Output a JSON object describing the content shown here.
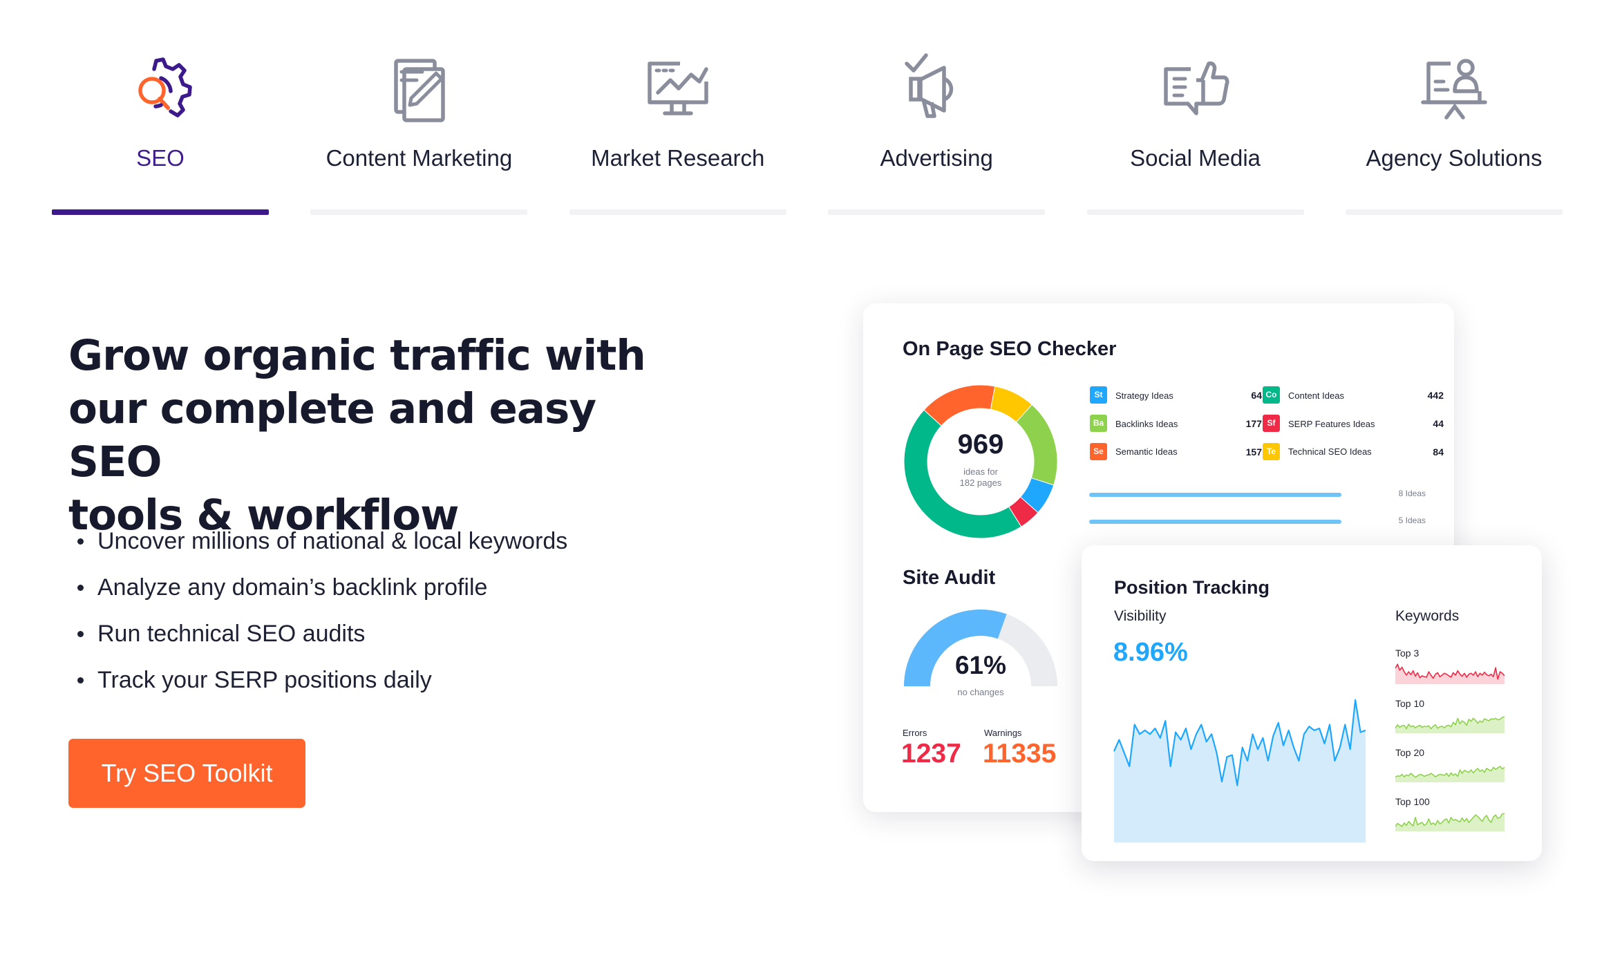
{
  "tabs": [
    {
      "label": "SEO",
      "icon": "seo-gear-magnifier-icon",
      "active": true
    },
    {
      "label": "Content Marketing",
      "icon": "document-pencil-icon",
      "active": false
    },
    {
      "label": "Market Research",
      "icon": "monitor-chart-icon",
      "active": false
    },
    {
      "label": "Advertising",
      "icon": "megaphone-icon",
      "active": false
    },
    {
      "label": "Social Media",
      "icon": "thumbs-up-chat-icon",
      "active": false
    },
    {
      "label": "Agency Solutions",
      "icon": "presenter-board-icon",
      "active": false
    }
  ],
  "hero": {
    "title_lines": [
      "Grow organic traffic with",
      "our complete and easy SEO",
      "tools & workflow"
    ],
    "bullets": [
      "Uncover millions of national & local keywords",
      "Analyze any domain’s backlink profile",
      "Run technical SEO audits",
      "Track your SERP positions daily"
    ],
    "cta_label": "Try SEO Toolkit"
  },
  "colors": {
    "accent_purple": "#3c1a8c",
    "cta_orange": "#ff642d",
    "icon_gray": "#8a8e9c",
    "error_red": "#ee2a46",
    "warning_orange": "#ff642d",
    "visibility_blue": "#1ea7fd"
  },
  "onpage": {
    "title": "On Page SEO Checker",
    "donut_value": "969",
    "donut_caption_1": "ideas for",
    "donut_caption_2": "182 pages",
    "ideas": [
      {
        "abbr": "St",
        "label": "Strategy Ideas",
        "value": "64",
        "color": "#1ea7fd"
      },
      {
        "abbr": "Ba",
        "label": "Backlinks Ideas",
        "value": "177",
        "color": "#8ed14c"
      },
      {
        "abbr": "Se",
        "label": "Semantic Ideas",
        "value": "157",
        "color": "#ff642d"
      },
      {
        "abbr": "Co",
        "label": "Content Ideas",
        "value": "442",
        "color": "#00b88a"
      },
      {
        "abbr": "Sf",
        "label": "SERP Features Ideas",
        "value": "44",
        "color": "#ee2a46"
      },
      {
        "abbr": "Te",
        "label": "Technical SEO Ideas",
        "value": "84",
        "color": "#ffc700"
      }
    ],
    "progress_rows": [
      {
        "label": "8 Ideas",
        "fill": 1.0
      },
      {
        "label": "5 Ideas",
        "fill": 1.0
      }
    ]
  },
  "chart_data": [
    {
      "type": "pie",
      "title": "On Page SEO Checker",
      "note": "donut",
      "categories": [
        "Content Ideas",
        "Semantic Ideas",
        "Technical SEO Ideas",
        "Backlinks Ideas",
        "Strategy Ideas",
        "SERP Features Ideas"
      ],
      "values": [
        442,
        157,
        84,
        177,
        64,
        44
      ],
      "colors": [
        "#00b88a",
        "#ff642d",
        "#ffc700",
        "#8ed14c",
        "#1ea7fd",
        "#ee2a46"
      ]
    },
    {
      "type": "pie",
      "title": "Site Audit",
      "note": "semi-circular gauge",
      "categories": [
        "score",
        "remaining"
      ],
      "values": [
        61,
        39
      ],
      "colors": [
        "#5cb7fb",
        "#ebecef"
      ]
    },
    {
      "type": "area",
      "title": "Visibility",
      "x": [
        1,
        2,
        3,
        4,
        5,
        6,
        7,
        8,
        9,
        10,
        11,
        12,
        13,
        14,
        15,
        16,
        17,
        18,
        19,
        20,
        21,
        22,
        23,
        24,
        25,
        26,
        27,
        28,
        29,
        30,
        31,
        32,
        33,
        34,
        35,
        36,
        37,
        38,
        39,
        40,
        41,
        42,
        43,
        44,
        45,
        46,
        47,
        48,
        49,
        50
      ],
      "values": [
        48,
        54,
        47,
        40,
        62,
        57,
        59,
        57,
        60,
        55,
        64,
        40,
        58,
        54,
        60,
        49,
        57,
        62,
        53,
        57,
        47,
        32,
        45,
        46,
        30,
        50,
        43,
        57,
        49,
        55,
        43,
        56,
        63,
        51,
        59,
        50,
        43,
        57,
        61,
        59,
        60,
        52,
        62,
        43,
        50,
        62,
        49,
        75,
        58,
        59
      ],
      "color": "#1ea7fd"
    },
    {
      "type": "area",
      "title": "Keywords",
      "series": [
        {
          "name": "Top 3",
          "values": [
            62,
            70,
            58,
            64,
            55,
            48,
            55,
            49,
            57,
            46,
            53,
            43,
            47,
            45,
            44,
            55,
            48,
            42,
            50,
            53,
            45,
            48,
            52,
            50,
            47,
            44,
            53,
            48,
            57,
            50,
            46,
            52,
            44,
            50,
            52,
            48,
            55,
            45,
            52,
            48,
            54,
            49,
            47,
            50,
            45,
            63,
            40,
            55,
            52,
            47
          ],
          "color": "#ee2a46"
        },
        {
          "name": "Top 10",
          "values": [
            40,
            47,
            42,
            45,
            46,
            39,
            48,
            43,
            45,
            41,
            44,
            46,
            42,
            44,
            43,
            45,
            39,
            44,
            47,
            40,
            43,
            44,
            41,
            45,
            46,
            43,
            52,
            47,
            60,
            49,
            55,
            52,
            46,
            58,
            54,
            60,
            56,
            50,
            55,
            52,
            59,
            57,
            55,
            59,
            58,
            60,
            57,
            58,
            62,
            63
          ],
          "color": "#8ed14c"
        },
        {
          "name": "Top 20",
          "values": [
            40,
            43,
            42,
            46,
            41,
            45,
            43,
            48,
            44,
            40,
            43,
            46,
            45,
            42,
            44,
            45,
            48,
            45,
            41,
            44,
            46,
            45,
            44,
            48,
            42,
            49,
            44,
            47,
            42,
            55,
            48,
            54,
            52,
            50,
            55,
            49,
            54,
            58,
            52,
            55,
            50,
            58,
            55,
            53,
            60,
            56,
            59,
            62,
            57,
            60
          ],
          "color": "#8ed14c"
        },
        {
          "name": "Top 100",
          "values": [
            40,
            46,
            43,
            40,
            47,
            42,
            50,
            45,
            41,
            58,
            43,
            46,
            48,
            42,
            45,
            55,
            44,
            47,
            43,
            52,
            45,
            48,
            53,
            55,
            47,
            58,
            52,
            54,
            51,
            49,
            57,
            50,
            56,
            48,
            53,
            58,
            63,
            60,
            55,
            50,
            58,
            62,
            53,
            48,
            59,
            63,
            56,
            58,
            65,
            66
          ],
          "color": "#8ed14c"
        }
      ]
    }
  ],
  "site_audit": {
    "title": "Site Audit",
    "percent": "61%",
    "caption": "no changes",
    "errors_label": "Errors",
    "errors_value": "1237",
    "warnings_label": "Warnings",
    "warnings_value": "11335"
  },
  "position_tracking": {
    "title": "Position Tracking",
    "visibility_label": "Visibility",
    "visibility_value": "8.96%",
    "keywords_label": "Keywords",
    "keyword_rows": [
      "Top 3",
      "Top 10",
      "Top 20",
      "Top 100"
    ]
  }
}
